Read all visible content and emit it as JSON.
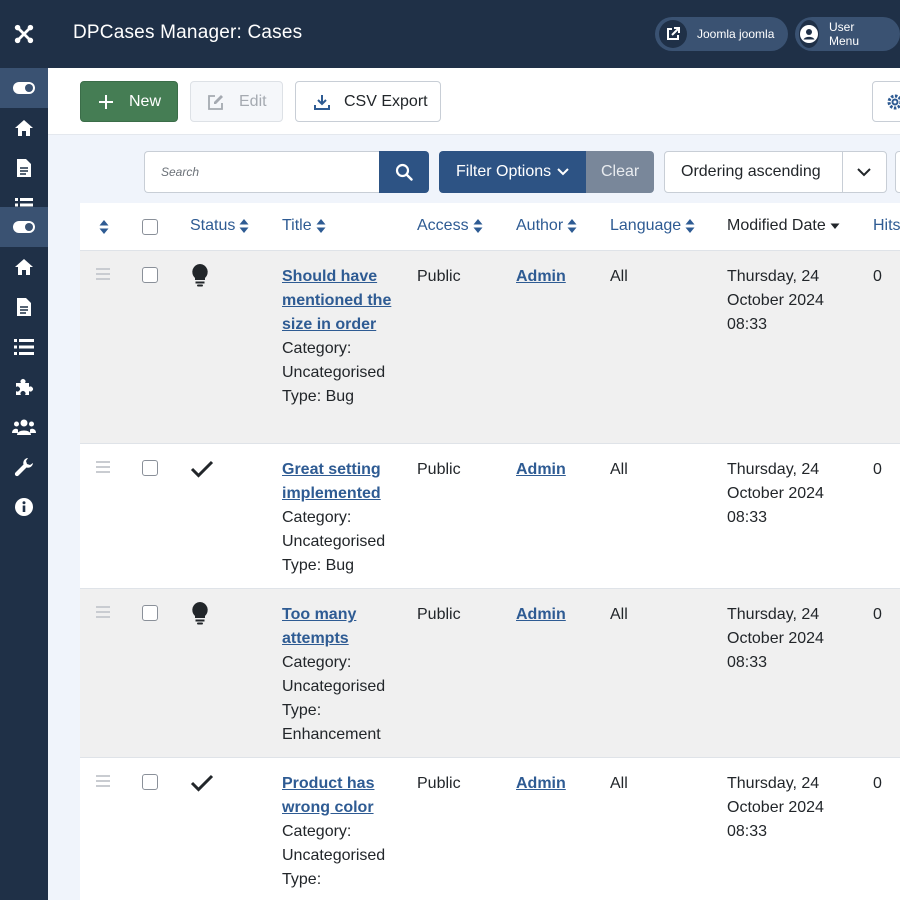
{
  "header": {
    "title": "DPCases Manager: Cases",
    "site_link_label": "Joomla joomla",
    "user_menu_label": "User Menu"
  },
  "sidebar": {
    "items": [
      {
        "icon": "toggle-icon"
      },
      {
        "icon": "home-icon"
      },
      {
        "icon": "document-icon"
      },
      {
        "icon": "list-icon"
      },
      {
        "icon": "toggle-icon"
      },
      {
        "icon": "home-icon"
      },
      {
        "icon": "document-icon"
      },
      {
        "icon": "list-icon"
      },
      {
        "icon": "puzzle-icon"
      },
      {
        "icon": "users-icon"
      },
      {
        "icon": "wrench-icon"
      },
      {
        "icon": "info-icon"
      }
    ]
  },
  "toolbar": {
    "new_label": "New",
    "edit_label": "Edit",
    "csv_label": "CSV Export"
  },
  "filters": {
    "search_placeholder": "Search",
    "filter_options_label": "Filter Options",
    "clear_label": "Clear",
    "ordering_value": "Ordering ascending"
  },
  "table": {
    "columns": {
      "status": "Status",
      "title": "Title",
      "access": "Access",
      "author": "Author",
      "language": "Language",
      "modified": "Modified Date",
      "hits": "Hits"
    },
    "rows": [
      {
        "status": "lightbulb-icon",
        "title": "Should have mentioned the size in order",
        "category": "Category: Uncategorised",
        "type": "Type: Bug",
        "access": "Public",
        "author": "Admin",
        "language": "All",
        "modified": "Thursday, 24 October 2024 08:33",
        "hits": "0"
      },
      {
        "status": "check-icon",
        "title": "Great setting implemented",
        "category": "Category: Uncategorised",
        "type": "Type: Bug",
        "access": "Public",
        "author": "Admin",
        "language": "All",
        "modified": "Thursday, 24 October 2024 08:33",
        "hits": "0"
      },
      {
        "status": "lightbulb-icon",
        "title": "Too many attempts",
        "category": "Category: Uncategorised",
        "type": "Type: Enhancement",
        "access": "Public",
        "author": "Admin",
        "language": "All",
        "modified": "Thursday, 24 October 2024 08:33",
        "hits": "0"
      },
      {
        "status": "check-icon",
        "title": "Product has wrong color",
        "category": "Category: Uncategorised",
        "type": "Type:",
        "access": "Public",
        "author": "Admin",
        "language": "All",
        "modified": "Thursday, 24 October 2024 08:33",
        "hits": "0"
      }
    ]
  }
}
